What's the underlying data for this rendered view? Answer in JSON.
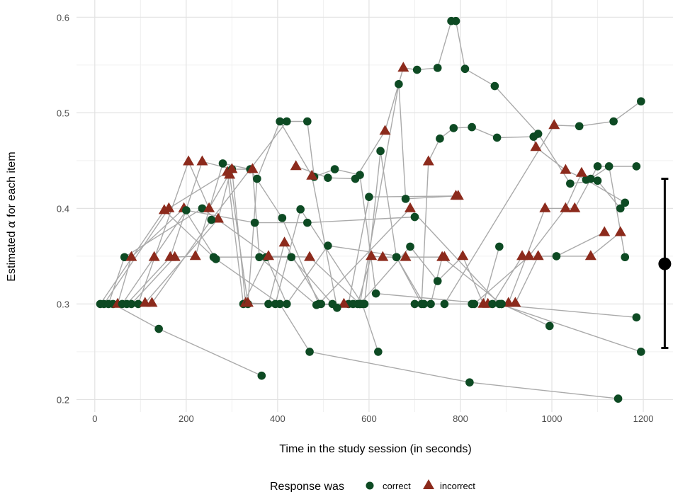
{
  "chart_data": {
    "type": "scatter",
    "title": "",
    "xlabel": "Time in the study session (in seconds)",
    "ylabel_prefix": "Estimated ",
    "ylabel_symbol": "α",
    "ylabel_suffix": " for each item",
    "xlim": [
      -40,
      1265
    ],
    "ylim": [
      0.187,
      0.618
    ],
    "x_ticks": [
      0,
      200,
      400,
      600,
      800,
      1000,
      1200
    ],
    "x_tick_labels": [
      "0",
      "200",
      "400",
      "600",
      "800",
      "1000",
      "1200"
    ],
    "y_ticks": [
      0.2,
      0.3,
      0.4,
      0.5,
      0.6
    ],
    "y_tick_labels": [
      "0.2",
      "0.3",
      "0.4",
      "0.5",
      "0.6"
    ],
    "grid": true,
    "legend": {
      "title": "Response was",
      "position": "bottom",
      "entries": [
        {
          "label": "correct",
          "marker": "circle",
          "color": "#0d4a23"
        },
        {
          "label": "incorrect",
          "marker": "triangle",
          "color": "#8c2a1c"
        }
      ]
    },
    "line_color": "#aaaaaa",
    "items": [
      [
        [
          12,
          0.3,
          "c"
        ],
        [
          152,
          0.398,
          "i"
        ],
        [
          260,
          0.349,
          "c"
        ],
        [
          430,
          0.349,
          "c"
        ],
        [
          520,
          0.3,
          "c"
        ],
        [
          700,
          0.3,
          "c"
        ],
        [
          825,
          0.3,
          "c"
        ]
      ],
      [
        [
          20,
          0.3,
          "c"
        ],
        [
          162,
          0.4,
          "i"
        ],
        [
          290,
          0.438,
          "i"
        ],
        [
          325,
          0.3,
          "c"
        ],
        [
          375,
          0.349,
          "c"
        ],
        [
          420,
          0.3,
          "c"
        ],
        [
          510,
          0.361,
          "c"
        ],
        [
          680,
          0.349,
          "i"
        ],
        [
          765,
          0.349,
          "i"
        ]
      ],
      [
        [
          30,
          0.3,
          "c"
        ],
        [
          65,
          0.349,
          "c"
        ],
        [
          235,
          0.4,
          "c"
        ],
        [
          380,
          0.35,
          "i"
        ],
        [
          470,
          0.349,
          "i"
        ],
        [
          580,
          0.3,
          "c"
        ],
        [
          690,
          0.36,
          "c"
        ],
        [
          750,
          0.324,
          "c"
        ],
        [
          805,
          0.35,
          "i"
        ],
        [
          850,
          0.3,
          "i"
        ],
        [
          885,
          0.36,
          "c"
        ]
      ],
      [
        [
          40,
          0.3,
          "c"
        ],
        [
          140,
          0.274,
          "c"
        ],
        [
          365,
          0.225,
          "c"
        ]
      ],
      [
        [
          50,
          0.3,
          "i"
        ],
        [
          80,
          0.349,
          "i"
        ],
        [
          195,
          0.4,
          "i"
        ],
        [
          265,
          0.347,
          "c"
        ],
        [
          405,
          0.3,
          "c"
        ],
        [
          470,
          0.25,
          "c"
        ],
        [
          820,
          0.218,
          "c"
        ],
        [
          1145,
          0.201,
          "c"
        ]
      ],
      [
        [
          60,
          0.3,
          "c"
        ],
        [
          130,
          0.349,
          "i"
        ],
        [
          200,
          0.398,
          "c"
        ],
        [
          350,
          0.385,
          "c"
        ],
        [
          465,
          0.385,
          "c"
        ],
        [
          700,
          0.391,
          "c"
        ]
      ],
      [
        [
          70,
          0.3,
          "c"
        ],
        [
          165,
          0.349,
          "i"
        ],
        [
          235,
          0.449,
          "i"
        ],
        [
          300,
          0.441,
          "c"
        ],
        [
          330,
          0.301,
          "i"
        ],
        [
          395,
          0.3,
          "c"
        ],
        [
          450,
          0.399,
          "c"
        ],
        [
          585,
          0.3,
          "c"
        ],
        [
          620,
          0.25,
          "c"
        ]
      ],
      [
        [
          80,
          0.3,
          "c"
        ],
        [
          175,
          0.349,
          "i"
        ],
        [
          220,
          0.35,
          "i"
        ],
        [
          280,
          0.447,
          "c"
        ],
        [
          340,
          0.441,
          "c"
        ],
        [
          410,
          0.39,
          "c"
        ],
        [
          490,
          0.3,
          "c"
        ],
        [
          690,
          0.4,
          "i"
        ],
        [
          885,
          0.3,
          "c"
        ],
        [
          1195,
          0.25,
          "c"
        ]
      ],
      [
        [
          95,
          0.3,
          "c"
        ],
        [
          205,
          0.449,
          "i"
        ],
        [
          250,
          0.4,
          "i"
        ],
        [
          300,
          0.441,
          "i"
        ],
        [
          345,
          0.441,
          "i"
        ],
        [
          360,
          0.349,
          "c"
        ],
        [
          485,
          0.299,
          "c"
        ],
        [
          555,
          0.3,
          "c"
        ],
        [
          600,
          0.412,
          "c"
        ],
        [
          795,
          0.413,
          "i"
        ]
      ],
      [
        [
          110,
          0.301,
          "i"
        ],
        [
          270,
          0.389,
          "i"
        ],
        [
          295,
          0.435,
          "i"
        ],
        [
          335,
          0.3,
          "c"
        ],
        [
          380,
          0.3,
          "c"
        ],
        [
          415,
          0.364,
          "i"
        ],
        [
          495,
          0.3,
          "c"
        ],
        [
          545,
          0.3,
          "i"
        ],
        [
          575,
          0.3,
          "c"
        ],
        [
          605,
          0.35,
          "i"
        ],
        [
          630,
          0.349,
          "i"
        ],
        [
          660,
          0.349,
          "c"
        ],
        [
          720,
          0.3,
          "c"
        ],
        [
          735,
          0.3,
          "c"
        ],
        [
          760,
          0.349,
          "i"
        ],
        [
          890,
          0.3,
          "c"
        ],
        [
          995,
          0.277,
          "c"
        ]
      ],
      [
        [
          125,
          0.301,
          "i"
        ],
        [
          255,
          0.388,
          "c"
        ],
        [
          420,
          0.491,
          "c"
        ],
        [
          465,
          0.491,
          "c"
        ],
        [
          480,
          0.433,
          "c"
        ],
        [
          525,
          0.441,
          "c"
        ],
        [
          580,
          0.435,
          "c"
        ],
        [
          615,
          0.311,
          "c"
        ],
        [
          1185,
          0.286,
          "c"
        ]
      ],
      [
        [
          335,
          0.301,
          "i"
        ],
        [
          355,
          0.431,
          "c"
        ],
        [
          405,
          0.491,
          "c"
        ],
        [
          475,
          0.434,
          "i"
        ],
        [
          530,
          0.296,
          "c"
        ],
        [
          565,
          0.3,
          "c"
        ],
        [
          590,
          0.3,
          "c"
        ],
        [
          625,
          0.46,
          "c"
        ],
        [
          660,
          0.349,
          "c"
        ],
        [
          715,
          0.3,
          "c"
        ],
        [
          730,
          0.449,
          "i"
        ],
        [
          755,
          0.473,
          "c"
        ],
        [
          785,
          0.484,
          "c"
        ],
        [
          825,
          0.485,
          "c"
        ],
        [
          880,
          0.474,
          "c"
        ],
        [
          960,
          0.475,
          "c"
        ],
        [
          965,
          0.464,
          "i"
        ],
        [
          1030,
          0.44,
          "i"
        ],
        [
          1075,
          0.43,
          "c"
        ],
        [
          1160,
          0.406,
          "c"
        ]
      ],
      [
        [
          440,
          0.444,
          "i"
        ],
        [
          510,
          0.432,
          "c"
        ],
        [
          570,
          0.431,
          "c"
        ],
        [
          635,
          0.481,
          "i"
        ],
        [
          675,
          0.547,
          "i"
        ],
        [
          705,
          0.545,
          "c"
        ],
        [
          750,
          0.547,
          "c"
        ],
        [
          780,
          0.596,
          "c"
        ],
        [
          790,
          0.596,
          "c"
        ],
        [
          810,
          0.546,
          "c"
        ],
        [
          875,
          0.528,
          "c"
        ],
        [
          970,
          0.478,
          "c"
        ],
        [
          1040,
          0.426,
          "c"
        ],
        [
          1100,
          0.429,
          "c"
        ],
        [
          1150,
          0.4,
          "c"
        ]
      ],
      [
        [
          580,
          0.3,
          "c"
        ],
        [
          665,
          0.53,
          "c"
        ],
        [
          680,
          0.41,
          "c"
        ],
        [
          790,
          0.413,
          "i"
        ]
      ],
      [
        [
          765,
          0.3,
          "c"
        ],
        [
          1005,
          0.487,
          "i"
        ],
        [
          1060,
          0.486,
          "c"
        ],
        [
          1135,
          0.491,
          "c"
        ],
        [
          1195,
          0.512,
          "c"
        ]
      ],
      [
        [
          830,
          0.3,
          "c"
        ],
        [
          950,
          0.35,
          "i"
        ],
        [
          1030,
          0.4,
          "i"
        ],
        [
          1065,
          0.437,
          "i"
        ],
        [
          1085,
          0.431,
          "c"
        ],
        [
          1125,
          0.444,
          "c"
        ],
        [
          1160,
          0.349,
          "c"
        ]
      ],
      [
        [
          860,
          0.3,
          "i"
        ],
        [
          905,
          0.301,
          "i"
        ],
        [
          985,
          0.4,
          "i"
        ],
        [
          1050,
          0.4,
          "i"
        ],
        [
          1100,
          0.444,
          "c"
        ],
        [
          1185,
          0.444,
          "c"
        ]
      ],
      [
        [
          870,
          0.3,
          "c"
        ],
        [
          935,
          0.35,
          "i"
        ],
        [
          1010,
          0.35,
          "c"
        ],
        [
          1115,
          0.375,
          "i"
        ]
      ],
      [
        [
          890,
          0.3,
          "c"
        ],
        [
          920,
          0.301,
          "i"
        ],
        [
          970,
          0.35,
          "i"
        ],
        [
          1085,
          0.35,
          "i"
        ],
        [
          1150,
          0.375,
          "i"
        ]
      ]
    ],
    "summary": {
      "x": 1247,
      "mean": 0.342,
      "lower": 0.254,
      "upper": 0.431,
      "color": "#000000"
    }
  }
}
